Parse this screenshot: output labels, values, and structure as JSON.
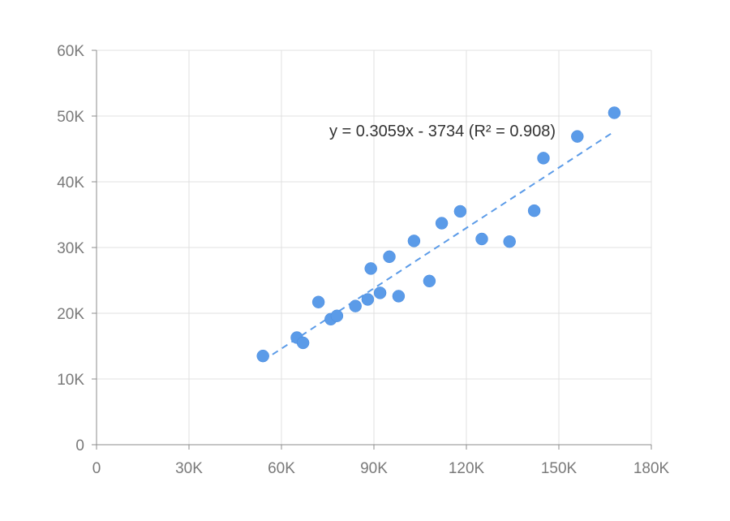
{
  "chart_data": {
    "type": "scatter",
    "title": "",
    "xlabel": "",
    "ylabel": "",
    "xlim": [
      0,
      180000
    ],
    "ylim": [
      0,
      60000
    ],
    "x_ticks": [
      0,
      30000,
      60000,
      90000,
      120000,
      150000,
      180000
    ],
    "y_ticks": [
      0,
      10000,
      20000,
      30000,
      40000,
      50000,
      60000
    ],
    "x_tick_labels": [
      "0",
      "30K",
      "60K",
      "90K",
      "120K",
      "150K",
      "180K"
    ],
    "y_tick_labels": [
      "0",
      "10K",
      "20K",
      "30K",
      "40K",
      "50K",
      "60K"
    ],
    "grid": true,
    "colors": {
      "point": "#5b9be8",
      "trendline": "#5b9be8"
    },
    "series": [
      {
        "points": [
          {
            "x": 54000,
            "y": 13500
          },
          {
            "x": 65000,
            "y": 16300
          },
          {
            "x": 67000,
            "y": 15500
          },
          {
            "x": 72000,
            "y": 21700
          },
          {
            "x": 76000,
            "y": 19100
          },
          {
            "x": 78000,
            "y": 19600
          },
          {
            "x": 84000,
            "y": 21100
          },
          {
            "x": 88000,
            "y": 22100
          },
          {
            "x": 89000,
            "y": 26800
          },
          {
            "x": 92000,
            "y": 23100
          },
          {
            "x": 95000,
            "y": 28600
          },
          {
            "x": 98000,
            "y": 22600
          },
          {
            "x": 103000,
            "y": 31000
          },
          {
            "x": 108000,
            "y": 24900
          },
          {
            "x": 112000,
            "y": 33700
          },
          {
            "x": 118000,
            "y": 35500
          },
          {
            "x": 125000,
            "y": 31300
          },
          {
            "x": 134000,
            "y": 30900
          },
          {
            "x": 142000,
            "y": 35600
          },
          {
            "x": 145000,
            "y": 43600
          },
          {
            "x": 156000,
            "y": 46900
          },
          {
            "x": 168000,
            "y": 50500
          }
        ]
      }
    ],
    "trendline": {
      "type": "linear",
      "slope": 0.3059,
      "intercept": -3734,
      "r2": 0.908,
      "x_range": [
        54000,
        168000
      ],
      "label": "y = 0.3059x - 3734 (R² = 0.908)"
    }
  }
}
